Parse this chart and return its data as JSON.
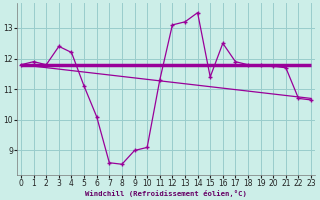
{
  "x": [
    0,
    1,
    2,
    3,
    4,
    5,
    6,
    7,
    8,
    9,
    10,
    11,
    12,
    13,
    14,
    15,
    16,
    17,
    18,
    19,
    20,
    21,
    22,
    23
  ],
  "y_main": [
    11.8,
    11.9,
    11.8,
    12.4,
    12.2,
    11.1,
    10.1,
    8.6,
    8.55,
    9.0,
    9.1,
    11.3,
    13.1,
    13.2,
    13.5,
    11.4,
    12.5,
    11.9,
    11.8,
    11.8,
    11.75,
    11.7,
    10.7,
    10.65
  ],
  "y_flat_start": 11.8,
  "y_flat_end": 11.8,
  "y_slope_start": 11.8,
  "y_slope_end": 10.7,
  "bg_color": "#cceee8",
  "line_color": "#990099",
  "grid_color": "#99cccc",
  "ylabel_ticks": [
    9,
    10,
    11,
    12,
    13
  ],
  "xlabel": "Windchill (Refroidissement éolien,°C)",
  "ylim": [
    8.2,
    13.8
  ],
  "xlim": [
    -0.3,
    23.3
  ],
  "thick_lw": 2.5,
  "thin_lw": 0.9,
  "data_lw": 0.9
}
